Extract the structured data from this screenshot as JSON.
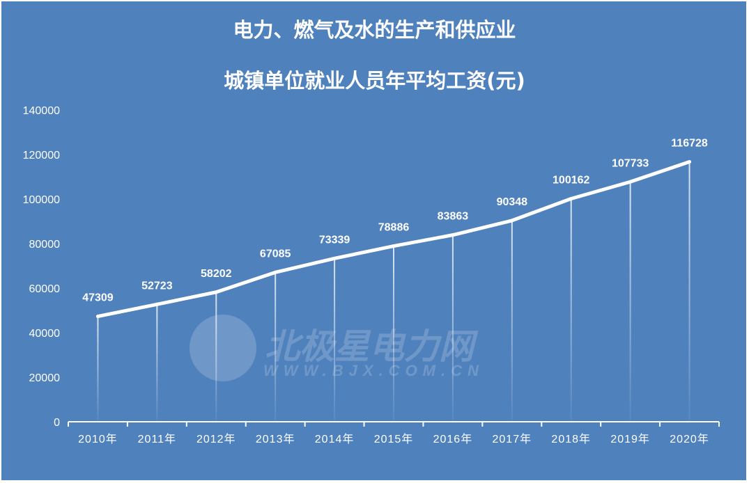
{
  "chart_data": {
    "type": "line",
    "title": [
      "电力、燃气及水的生产和供应业",
      "城镇单位就业人员年平均工资(元)"
    ],
    "categories": [
      "2010年",
      "2011年",
      "2012年",
      "2013年",
      "2014年",
      "2015年",
      "2016年",
      "2017年",
      "2018年",
      "2019年",
      "2020年"
    ],
    "values": [
      47309,
      52723,
      58202,
      67085,
      73339,
      78886,
      83863,
      90348,
      100162,
      107733,
      116728
    ],
    "ylim": [
      0,
      140000
    ],
    "yticks": [
      0,
      20000,
      40000,
      60000,
      80000,
      100000,
      120000,
      140000
    ],
    "grid": false,
    "data_labels": true,
    "drop_lines": true
  },
  "watermark": {
    "logo_text": "北极星电力网",
    "url_text": "WWW.BJX.COM.CN"
  },
  "colors": {
    "background": "#4f81bd",
    "line": "#ffffff"
  }
}
